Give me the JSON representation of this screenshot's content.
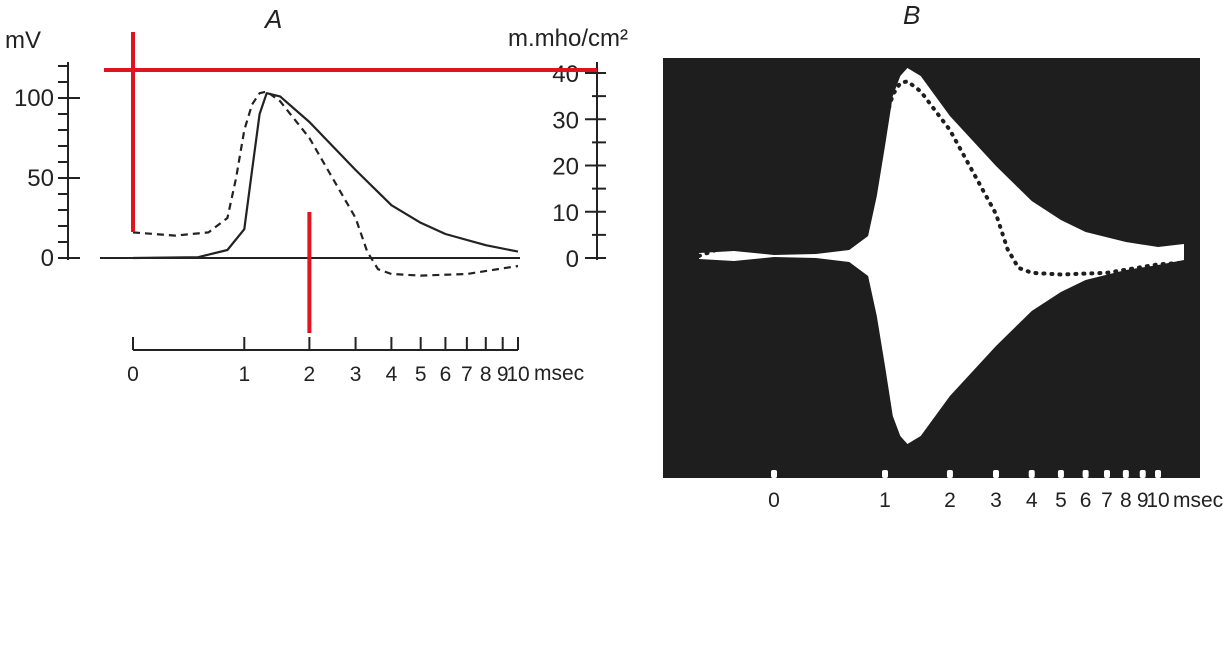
{
  "chart_data": [
    {
      "panel": "A",
      "type": "line",
      "title": "A",
      "ylabel_left": "mV",
      "ylabel_right": "m.mho/cm²",
      "xlabel": "msec",
      "x_scale": "log(1+t)",
      "ylim_left": [
        0,
        120
      ],
      "ylim_right": [
        0,
        40
      ],
      "xlim": [
        0,
        10
      ],
      "yticks_left": [
        0,
        50,
        100
      ],
      "yticks_right": [
        0,
        10,
        20,
        30,
        40
      ],
      "xticks": [
        0,
        1,
        2,
        3,
        4,
        5,
        6,
        7,
        8,
        9,
        10
      ],
      "series": [
        {
          "style": "solid",
          "axis": "left",
          "x": [
            0,
            0.5,
            0.8,
            1.0,
            1.1,
            1.2,
            1.3,
            1.5,
            2.0,
            3.0,
            4.0,
            5.0,
            6.0,
            8.0,
            10.0
          ],
          "y": [
            0,
            0.5,
            5,
            18,
            55,
            90,
            103,
            101,
            85,
            55,
            33,
            22,
            15,
            8,
            4
          ]
        },
        {
          "style": "dashed",
          "axis": "left",
          "x": [
            0,
            0.3,
            0.6,
            0.8,
            0.9,
            1.0,
            1.1,
            1.2,
            1.3,
            1.5,
            2.0,
            3.0,
            3.3,
            3.6,
            4.0,
            5.0,
            7.0,
            10.0
          ],
          "y": [
            16,
            14,
            16,
            25,
            50,
            80,
            96,
            103,
            104,
            98,
            75,
            25,
            4,
            -7,
            -10,
            -11,
            -10,
            -5
          ]
        }
      ],
      "annotations": {
        "horizontal_line": {
          "axis": "right",
          "y": 40,
          "color": "#e0141e"
        },
        "vertical_lines": [
          {
            "x": 0,
            "color": "#e0141e"
          },
          {
            "x": 2,
            "color": "#e0141e"
          }
        ]
      }
    },
    {
      "panel": "B",
      "type": "line",
      "title": "B",
      "xlabel": "msec",
      "x_scale": "log(1+t)",
      "xticks": [
        0,
        1,
        2,
        3,
        4,
        5,
        6,
        7,
        8,
        9,
        10
      ],
      "background_color": "#1e1e1e",
      "trace_color": "#ffffff",
      "series": [
        {
          "style": "dotted",
          "x": [
            0,
            0.3,
            0.6,
            0.8,
            0.9,
            1.0,
            1.1,
            1.2,
            1.3,
            1.5,
            2.0,
            3.0,
            3.3,
            3.6,
            4.0,
            5.0,
            7.0,
            10.0
          ],
          "y": [
            16,
            14,
            16,
            25,
            50,
            80,
            96,
            103,
            104,
            98,
            75,
            25,
            4,
            -7,
            -10,
            -11,
            -10,
            -5
          ]
        }
      ]
    }
  ],
  "colors": {
    "ink": "#222222",
    "red_marker": "#e0141e",
    "scope_bg": "#1e1e1e",
    "paper": "#ffffff"
  }
}
